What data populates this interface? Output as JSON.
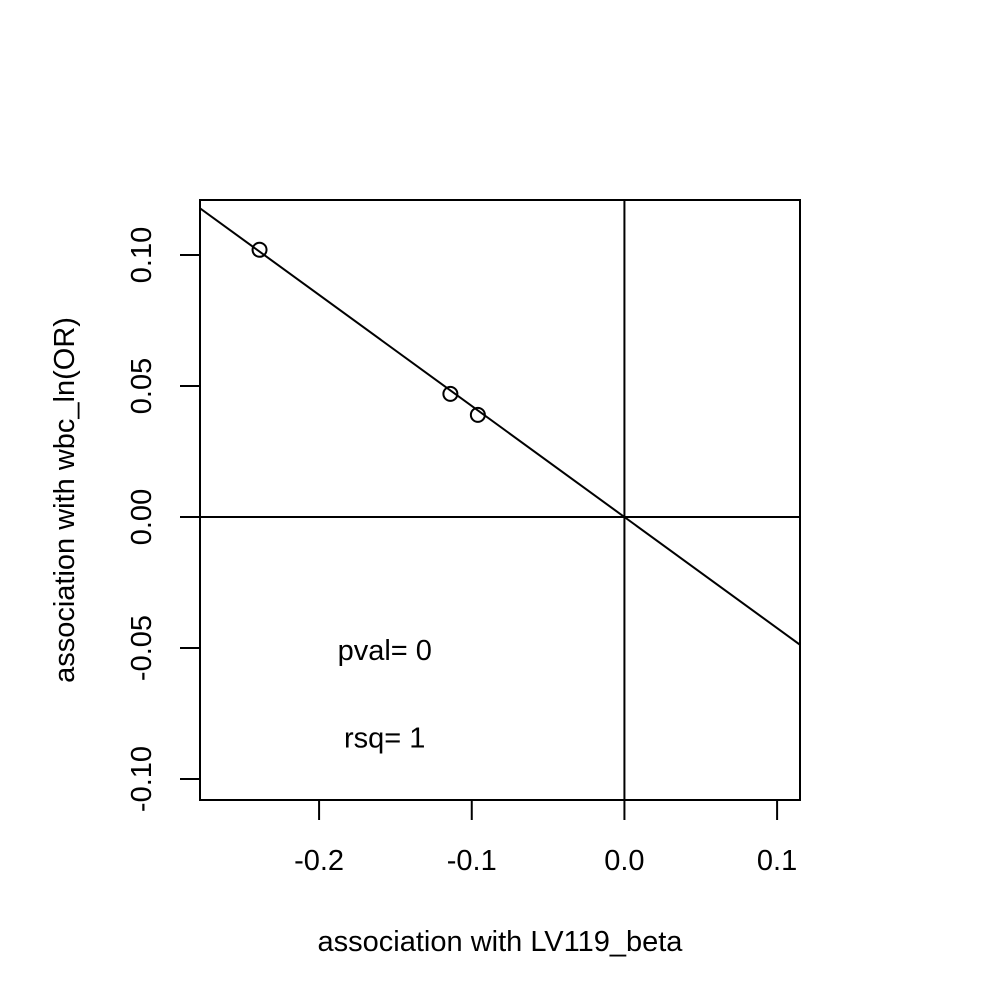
{
  "chart_data": {
    "type": "scatter",
    "title": "",
    "xlabel": "association with LV119_beta",
    "ylabel": "association with wbc_ln(OR)",
    "xlim": [
      -0.278,
      0.115
    ],
    "ylim": [
      -0.108,
      0.121
    ],
    "x_ticks": [
      -0.2,
      -0.1,
      0.0,
      0.1
    ],
    "x_tick_labels": [
      "-0.2",
      "-0.1",
      "0.0",
      "0.1"
    ],
    "y_ticks": [
      -0.1,
      -0.05,
      0.0,
      0.05,
      0.1
    ],
    "y_tick_labels": [
      "-0.10",
      "-0.05",
      "0.00",
      "0.05",
      "0.10"
    ],
    "points": [
      {
        "x": -0.239,
        "y": 0.102
      },
      {
        "x": -0.114,
        "y": 0.047
      },
      {
        "x": -0.096,
        "y": 0.039
      }
    ],
    "fit_line": {
      "intercept": 0.0,
      "slope": -0.4239
    },
    "reference_lines": {
      "h": 0,
      "v": 0
    },
    "annotations": [
      {
        "text": "pval= 0",
        "x": -0.157,
        "y": -0.0545
      },
      {
        "text": "rsq= 1",
        "x": -0.157,
        "y": -0.088
      }
    ],
    "grid": false,
    "marker": "open-circle",
    "color": "#000000"
  }
}
